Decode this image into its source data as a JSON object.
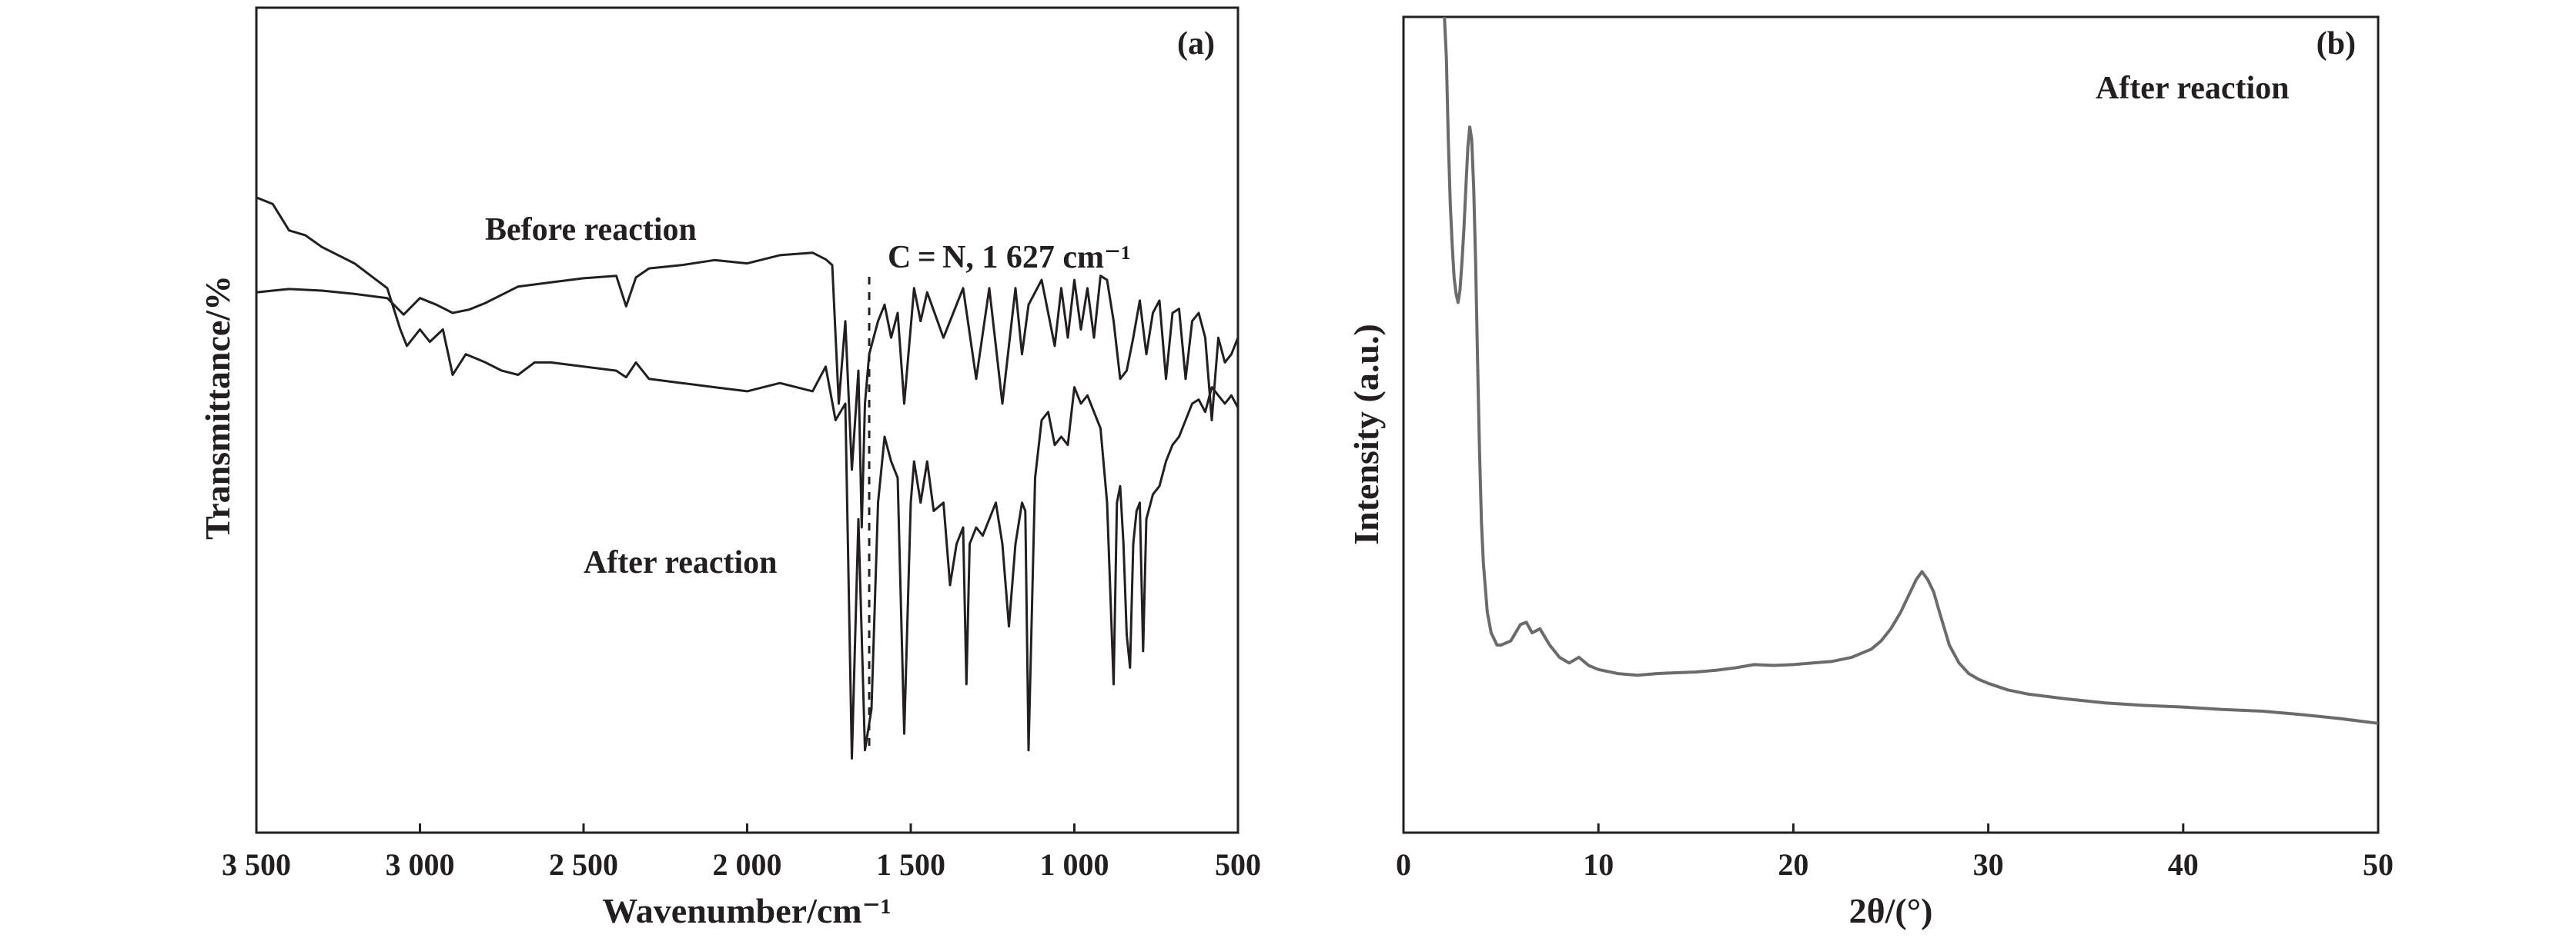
{
  "chart_data": [
    {
      "type": "line",
      "panel_label": "(a)",
      "xlabel": "Wavenumber/cm⁻¹",
      "ylabel": "Transmittance/%",
      "x_reversed": true,
      "xlim": [
        3500,
        500
      ],
      "ylim": [
        0,
        100
      ],
      "x_ticks": [
        3500,
        3000,
        2500,
        2000,
        1500,
        1000,
        500
      ],
      "x_tick_labels": [
        "3 500",
        "3 000",
        "2 500",
        "2 000",
        "1 500",
        "1 000",
        "500"
      ],
      "annotations": [
        {
          "text": "C = N, 1 627 cm⁻¹",
          "x": 1627
        }
      ],
      "series": [
        {
          "name": "Before reaction",
          "x": [
            3500,
            3450,
            3400,
            3300,
            3200,
            3100,
            3050,
            3000,
            2950,
            2900,
            2850,
            2800,
            2700,
            2600,
            2500,
            2400,
            2370,
            2340,
            2300,
            2200,
            2100,
            2000,
            1900,
            1800,
            1760,
            1740,
            1720,
            1700,
            1680,
            1660,
            1650,
            1640,
            1627,
            1600,
            1580,
            1560,
            1540,
            1520,
            1490,
            1470,
            1450,
            1400,
            1380,
            1340,
            1300,
            1260,
            1220,
            1180,
            1160,
            1140,
            1100,
            1060,
            1040,
            1020,
            1000,
            980,
            960,
            940,
            920,
            900,
            880,
            860,
            840,
            820,
            800,
            780,
            760,
            740,
            720,
            700,
            680,
            660,
            640,
            620,
            600,
            580,
            560,
            540,
            520,
            500
          ],
          "y": [
            65.5,
            65.7,
            65.9,
            65.7,
            65.3,
            64.8,
            62.8,
            64.8,
            64.0,
            63.0,
            63.4,
            64.2,
            66.2,
            66.7,
            67.2,
            67.5,
            63.8,
            67.3,
            68.4,
            68.8,
            69.4,
            69.0,
            70.0,
            70.3,
            69.5,
            68.8,
            52.0,
            62.0,
            44.0,
            56.0,
            37.0,
            52.0,
            58.0,
            62.0,
            64.0,
            60.0,
            63.0,
            52.0,
            66.0,
            62.0,
            65.5,
            60.0,
            62.0,
            66.0,
            55.0,
            66.0,
            52.0,
            66.0,
            58.0,
            64.0,
            67.0,
            59.0,
            66.0,
            60.0,
            67.0,
            61.0,
            66.0,
            60.0,
            67.5,
            67.0,
            62.0,
            55.0,
            56.0,
            60.0,
            64.5,
            58.0,
            63.0,
            64.5,
            55.0,
            63.0,
            63.5,
            55.0,
            62.0,
            63.0,
            60.0,
            50.0,
            60.0,
            57.0,
            58.0,
            60.0
          ]
        },
        {
          "name": "After reaction",
          "x": [
            3500,
            3450,
            3400,
            3350,
            3300,
            3200,
            3100,
            3060,
            3040,
            3000,
            2970,
            2930,
            2900,
            2860,
            2830,
            2800,
            2750,
            2700,
            2650,
            2600,
            2500,
            2400,
            2370,
            2340,
            2300,
            2200,
            2100,
            2000,
            1900,
            1800,
            1760,
            1730,
            1700,
            1680,
            1660,
            1640,
            1620,
            1600,
            1580,
            1560,
            1540,
            1520,
            1500,
            1490,
            1470,
            1450,
            1430,
            1400,
            1380,
            1360,
            1340,
            1330,
            1320,
            1300,
            1280,
            1240,
            1220,
            1200,
            1180,
            1160,
            1150,
            1140,
            1120,
            1100,
            1080,
            1060,
            1040,
            1020,
            1000,
            980,
            960,
            940,
            920,
            900,
            880,
            870,
            860,
            850,
            840,
            830,
            820,
            810,
            800,
            790,
            780,
            760,
            740,
            720,
            700,
            680,
            660,
            640,
            620,
            600,
            580,
            560,
            540,
            520,
            500
          ],
          "y": [
            77.0,
            76.2,
            73.0,
            72.4,
            71.0,
            69.0,
            66.0,
            61.0,
            59.0,
            61.0,
            59.5,
            61.0,
            55.5,
            58.0,
            57.5,
            57.0,
            56.0,
            55.5,
            57.0,
            57.0,
            56.5,
            56.0,
            55.2,
            57.0,
            55.0,
            54.5,
            54.0,
            53.5,
            54.5,
            53.5,
            56.5,
            50.0,
            52.0,
            9.0,
            38.0,
            10.0,
            15.0,
            40.0,
            48.0,
            45.0,
            43.0,
            12.0,
            40.0,
            45.0,
            40.0,
            45.0,
            39.0,
            40.0,
            30.0,
            35.0,
            37.0,
            18.0,
            35.0,
            37.0,
            36.0,
            40.0,
            35.0,
            25.0,
            35.0,
            40.0,
            39.0,
            10.0,
            43.0,
            50.0,
            51.0,
            47.0,
            48.0,
            47.0,
            54.0,
            52.0,
            53.0,
            51.0,
            49.0,
            40.0,
            18.0,
            40.0,
            42.0,
            35.0,
            24.0,
            20.0,
            35.0,
            39.0,
            40.0,
            22.0,
            38.0,
            41.0,
            42.0,
            45.0,
            47.0,
            48.0,
            50.0,
            52.0,
            52.5,
            51.0,
            54.0,
            53.0,
            52.0,
            53.0,
            51.5
          ]
        }
      ]
    },
    {
      "type": "line",
      "panel_label": "(b)",
      "xlabel": "2θ/(°)",
      "ylabel": "Intensity (a.u.)",
      "xlim": [
        0,
        50
      ],
      "ylim": [
        0,
        100
      ],
      "x_ticks": [
        0,
        10,
        20,
        30,
        40,
        50
      ],
      "x_tick_labels": [
        "0",
        "10",
        "20",
        "30",
        "40",
        "50"
      ],
      "series": [
        {
          "name": "After reaction",
          "color": "#6b6b6b",
          "x": [
            2.1,
            2.2,
            2.3,
            2.4,
            2.5,
            2.6,
            2.7,
            2.8,
            2.9,
            3.0,
            3.1,
            3.2,
            3.3,
            3.4,
            3.5,
            3.6,
            3.7,
            3.8,
            3.9,
            4.0,
            4.1,
            4.3,
            4.5,
            4.8,
            5.0,
            5.5,
            6.0,
            6.3,
            6.6,
            7.0,
            7.5,
            8.0,
            8.5,
            9.0,
            9.5,
            10.0,
            11.0,
            12.0,
            13.0,
            14.0,
            15.0,
            16.0,
            17.0,
            18.0,
            19.0,
            20.0,
            21.0,
            22.0,
            23.0,
            24.0,
            24.5,
            25.0,
            25.5,
            26.0,
            26.3,
            26.6,
            26.9,
            27.2,
            27.5,
            28.0,
            28.5,
            29.0,
            29.5,
            30.0,
            31.0,
            32.0,
            34.0,
            36.0,
            38.0,
            40.0,
            42.0,
            44.0,
            46.0,
            48.0,
            50.0
          ],
          "y": [
            100.0,
            95.0,
            85.0,
            77.0,
            72.0,
            68.0,
            66.0,
            65.0,
            66.5,
            70.0,
            74.0,
            79.0,
            84.0,
            86.5,
            85.0,
            79.0,
            70.0,
            58.0,
            47.0,
            38.0,
            33.0,
            27.0,
            24.5,
            23.0,
            23.0,
            23.5,
            25.5,
            25.8,
            24.5,
            25.0,
            23.0,
            21.5,
            20.8,
            21.5,
            20.5,
            20.0,
            19.5,
            19.3,
            19.5,
            19.6,
            19.7,
            19.9,
            20.2,
            20.6,
            20.5,
            20.6,
            20.8,
            21.0,
            21.5,
            22.5,
            23.5,
            25.0,
            27.0,
            29.5,
            31.0,
            32.0,
            31.0,
            29.5,
            27.0,
            23.0,
            20.8,
            19.5,
            18.8,
            18.3,
            17.5,
            17.0,
            16.4,
            15.9,
            15.6,
            15.4,
            15.1,
            14.9,
            14.5,
            14.0,
            13.4
          ]
        }
      ]
    }
  ]
}
